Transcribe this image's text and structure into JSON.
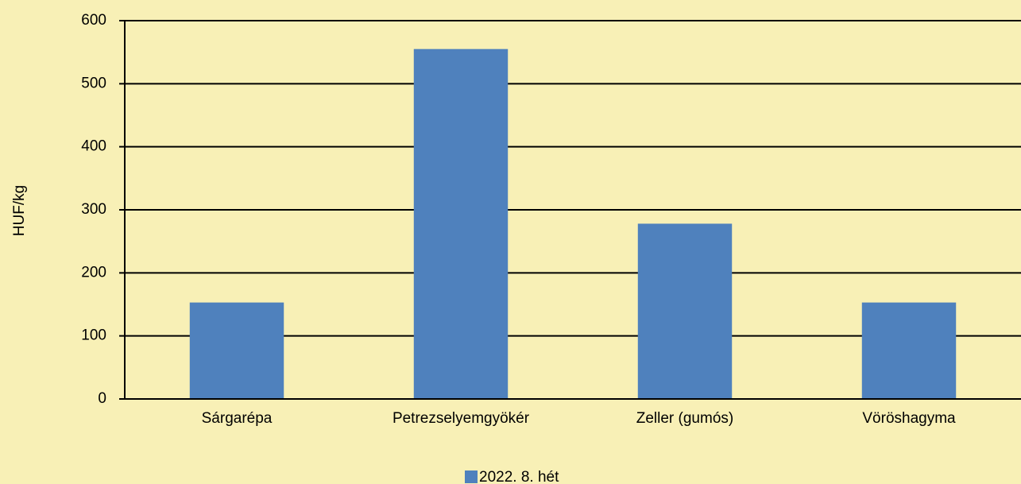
{
  "chart_data": {
    "type": "bar",
    "y_label": "HUF/kg",
    "categories": [
      "Sárgarépa",
      "Petrezselyemgyökér",
      "Zeller (gumós)",
      "Vöröshagyma"
    ],
    "series": [
      {
        "name": "2022. 8. hét",
        "color": "#4f81bd",
        "values": [
          153,
          555,
          278,
          153
        ]
      }
    ],
    "ylim": [
      0,
      600
    ],
    "yticks": [
      0,
      100,
      200,
      300,
      400,
      500,
      600
    ],
    "grid": true,
    "legend": "bottom"
  }
}
